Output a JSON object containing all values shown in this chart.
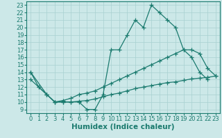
{
  "bg_color": "#cce8e8",
  "line_color": "#1a7a6e",
  "xlabel": "Humidex (Indice chaleur)",
  "xlim": [
    -0.5,
    23.5
  ],
  "ylim": [
    8.5,
    23.5
  ],
  "yticks": [
    9,
    10,
    11,
    12,
    13,
    14,
    15,
    16,
    17,
    18,
    19,
    20,
    21,
    22,
    23
  ],
  "xticks": [
    0,
    1,
    2,
    3,
    4,
    5,
    6,
    7,
    8,
    9,
    10,
    11,
    12,
    13,
    14,
    15,
    16,
    17,
    18,
    19,
    20,
    21,
    22,
    23
  ],
  "line1_x": [
    0,
    1,
    2,
    3,
    4,
    5,
    6,
    7,
    8,
    9,
    10,
    11,
    12,
    13,
    14,
    15,
    16,
    17,
    18,
    19,
    20,
    21,
    22
  ],
  "line1_y": [
    14,
    12,
    11,
    10,
    10,
    10,
    10,
    9,
    9,
    11,
    17,
    17,
    19,
    21,
    20,
    23,
    22,
    21,
    20,
    17,
    16,
    14,
    13
  ],
  "line2_x": [
    0,
    2,
    3,
    4,
    5,
    6,
    7,
    8,
    9,
    10,
    11,
    12,
    13,
    14,
    15,
    16,
    17,
    18,
    19,
    20,
    21,
    22,
    23
  ],
  "line2_y": [
    14,
    11,
    10,
    10.2,
    10.5,
    11,
    11.2,
    11.5,
    12,
    12.5,
    13,
    13.5,
    14,
    14.5,
    15,
    15.5,
    16,
    16.5,
    17,
    17,
    16.5,
    14.5,
    13.5
  ],
  "line3_x": [
    0,
    1,
    2,
    3,
    4,
    5,
    6,
    7,
    8,
    9,
    10,
    11,
    12,
    13,
    14,
    15,
    16,
    17,
    18,
    19,
    20,
    21,
    22,
    23
  ],
  "line3_y": [
    13,
    12,
    11,
    10,
    10,
    10,
    10.1,
    10.2,
    10.4,
    10.7,
    11,
    11.2,
    11.5,
    11.8,
    12,
    12.2,
    12.4,
    12.6,
    12.7,
    12.9,
    13.1,
    13.2,
    13.3,
    13.5
  ],
  "fontsize_label": 7.5,
  "fontsize_tick": 6,
  "grid_color": "#a8d0d0",
  "marker_size": 3.5
}
